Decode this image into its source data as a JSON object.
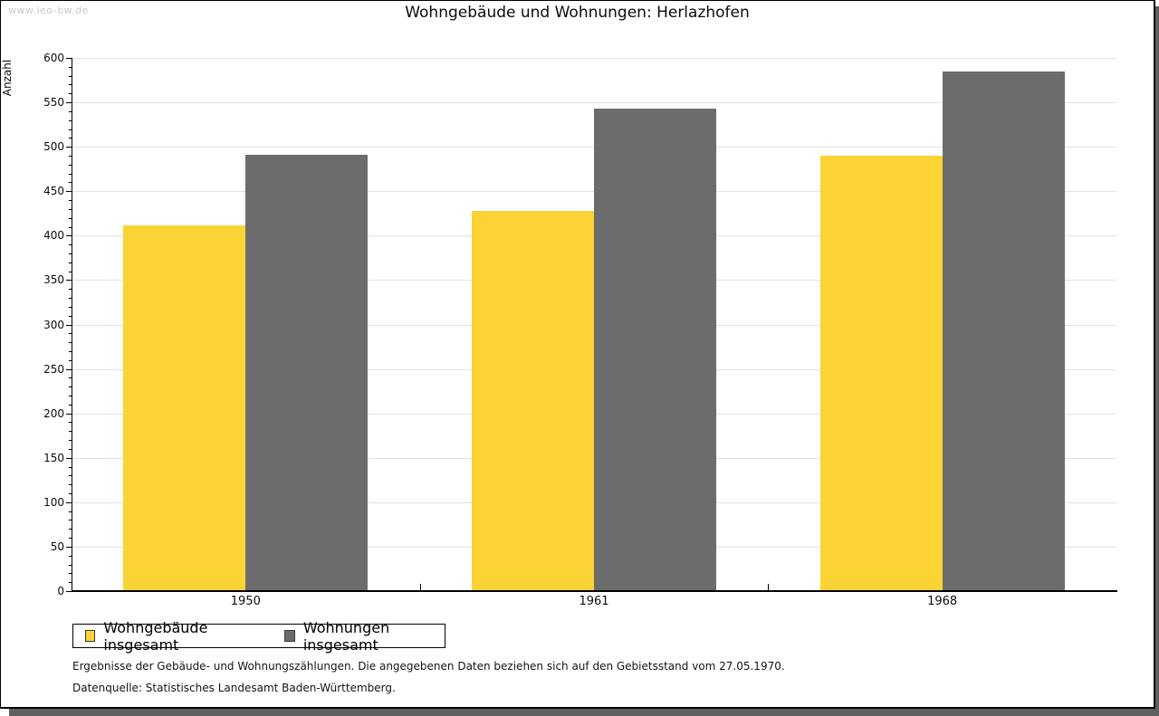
{
  "watermark": "www.leo-bw.de",
  "title": "Wohngebäude und Wohnungen: Herlazhofen",
  "chart_data": {
    "type": "bar",
    "title": "Wohngebäude und Wohnungen: Herlazhofen",
    "xlabel": "",
    "ylabel": "Anzahl",
    "categories": [
      "1950",
      "1961",
      "1968"
    ],
    "series": [
      {
        "name": "Wohngebäude insgesamt",
        "color": "#fcd335",
        "values": [
          412,
          428,
          490
        ]
      },
      {
        "name": "Wohnungen insgesamt",
        "color": "#6c6c6c",
        "values": [
          491,
          543,
          585
        ]
      }
    ],
    "ylim": [
      0,
      600
    ],
    "ytick_step": 50,
    "minor_tick_step": 10,
    "grid": true,
    "legend_position": "bottom-left"
  },
  "legend": {
    "items": [
      {
        "label": "Wohngebäude insgesamt",
        "color": "#fcd335"
      },
      {
        "label": "Wohnungen insgesamt",
        "color": "#6c6c6c"
      }
    ]
  },
  "footnotes": {
    "line1": "Ergebnisse der Gebäude- und Wohnungszählungen. Die angegebenen Daten beziehen sich auf den Gebietsstand vom 27.05.1970.",
    "line2": "Datenquelle: Statistisches Landesamt Baden-Württemberg."
  },
  "colors": {
    "series1": "#fcd335",
    "series2": "#6c6c6c",
    "gridline": "#e2e2e2",
    "page_shadow": "#606060",
    "watermark": "#c9c9c9"
  }
}
